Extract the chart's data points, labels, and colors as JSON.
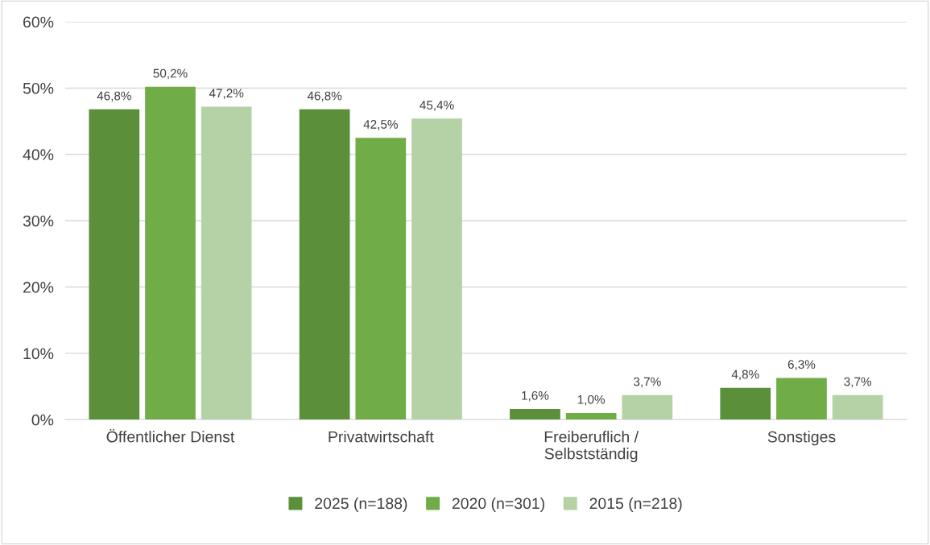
{
  "chart_data": {
    "type": "bar",
    "categories": [
      "Öffentlicher Dienst",
      "Privatwirtschaft",
      "Freiberuflich /\nSelbstständig",
      "Sonstiges"
    ],
    "series": [
      {
        "name": "2025 (n=188)",
        "color": "#5b8f3a",
        "values": [
          46.8,
          46.8,
          1.6,
          4.8
        ],
        "value_labels": [
          "46,8%",
          "46,8%",
          "1,6%",
          "4,8%"
        ]
      },
      {
        "name": "2020 (n=301)",
        "color": "#70ad47",
        "values": [
          50.2,
          42.5,
          1.0,
          6.3
        ],
        "value_labels": [
          "50,2%",
          "42,5%",
          "1,0%",
          "6,3%"
        ]
      },
      {
        "name": "2015 (n=218)",
        "color": "#b5d1a6",
        "values": [
          47.2,
          45.4,
          3.7,
          3.7
        ],
        "value_labels": [
          "47,2%",
          "45,4%",
          "3,7%",
          "3,7%"
        ]
      }
    ],
    "ylim": [
      0,
      60
    ],
    "yticks": [
      {
        "value": 0,
        "label": "0%"
      },
      {
        "value": 10,
        "label": "10%"
      },
      {
        "value": 20,
        "label": "20%"
      },
      {
        "value": 30,
        "label": "30%"
      },
      {
        "value": 40,
        "label": "40%"
      },
      {
        "value": 50,
        "label": "50%"
      },
      {
        "value": 60,
        "label": "60%"
      }
    ],
    "grid": "y",
    "legend": "bottom"
  }
}
